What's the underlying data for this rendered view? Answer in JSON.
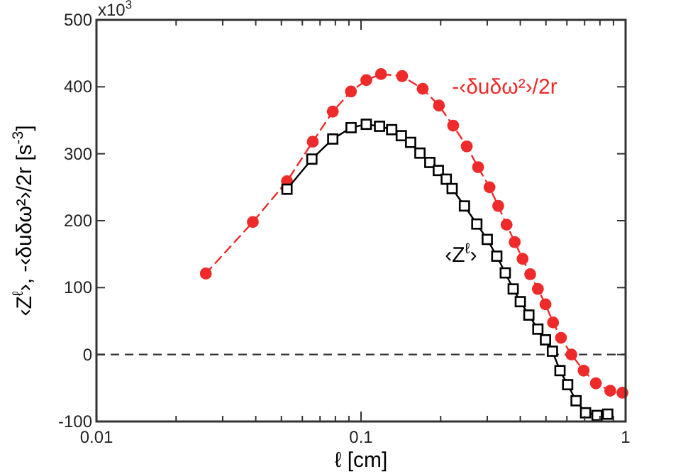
{
  "chart_data": {
    "type": "line",
    "xlabel": "ℓ [cm]",
    "ylabel": "‹Z$^{ℓ}$›, -‹δuδω²›/2r [s$^{-3}$]",
    "log": "x",
    "grid": false,
    "annotations": [
      "x10$^{3}$"
    ],
    "xlim": [
      0.01,
      1
    ],
    "xticks": [
      0.01,
      {
        "value": 0.02,
        "label": null
      },
      {
        "value": 0.03,
        "label": null
      },
      {
        "value": 0.04,
        "label": null
      },
      {
        "value": 0.05,
        "label": null
      },
      {
        "value": 0.06,
        "label": null
      },
      {
        "value": 0.07,
        "label": null
      },
      {
        "value": 0.08,
        "label": null
      },
      {
        "value": 0.09,
        "label": null
      },
      0.1,
      {
        "value": 0.2,
        "label": null
      },
      {
        "value": 0.3,
        "label": null
      },
      {
        "value": 0.4,
        "label": null
      },
      {
        "value": 0.5,
        "label": null
      },
      {
        "value": 0.6,
        "label": null
      },
      {
        "value": 0.7,
        "label": null
      },
      {
        "value": 0.8,
        "label": null
      },
      {
        "value": 0.9,
        "label": null
      },
      1
    ],
    "ylim": [
      -100,
      500
    ],
    "yticks": [
      -100,
      0,
      100,
      200,
      300,
      400,
      500
    ],
    "ref_lines": [
      {
        "axis": "y",
        "value": 0,
        "color": "#333333",
        "line_style": "dashed"
      }
    ],
    "series": [
      {
        "name": "-‹δuδω²›/2r",
        "color": "#ee2a2a",
        "marker": "circle",
        "line_style": "dashed",
        "x": [
          0.0259,
          0.039,
          0.0525,
          0.0657,
          0.0782,
          0.0916,
          0.1047,
          0.119,
          0.143,
          0.171,
          0.197,
          0.223,
          0.251,
          0.277,
          0.306,
          0.33,
          0.355,
          0.381,
          0.408,
          0.436,
          0.466,
          0.498,
          0.532,
          0.57,
          0.624,
          0.694,
          0.772,
          0.875,
          0.973
        ],
        "values": [
          121,
          198,
          259,
          318,
          363,
          393,
          410,
          419,
          416,
          397,
          372,
          342,
          311,
          280,
          250,
          222,
          194,
          168,
          143,
          120,
          98,
          75,
          48,
          25,
          0,
          -24,
          -43,
          -54,
          -57
        ]
      },
      {
        "name": "‹Z$^{ℓ}$›",
        "color": "#000000",
        "marker": "square",
        "line_style": "solid",
        "x": [
          0.0525,
          0.0652,
          0.0782,
          0.0917,
          0.1047,
          0.1175,
          0.1306,
          0.142,
          0.154,
          0.167,
          0.182,
          0.196,
          0.21,
          0.221,
          0.246,
          0.274,
          0.3,
          0.326,
          0.351,
          0.376,
          0.4,
          0.431,
          0.466,
          0.498,
          0.529,
          0.565,
          0.604,
          0.65,
          0.706,
          0.78,
          0.856
        ],
        "values": [
          247,
          292,
          322,
          339,
          344,
          341,
          336,
          327,
          317,
          301,
          287,
          275,
          262,
          248,
          222,
          195,
          172,
          147,
          122,
          98,
          79,
          59,
          38,
          22,
          5,
          -24,
          -45,
          -69,
          -87,
          -91,
          -89
        ]
      }
    ]
  }
}
